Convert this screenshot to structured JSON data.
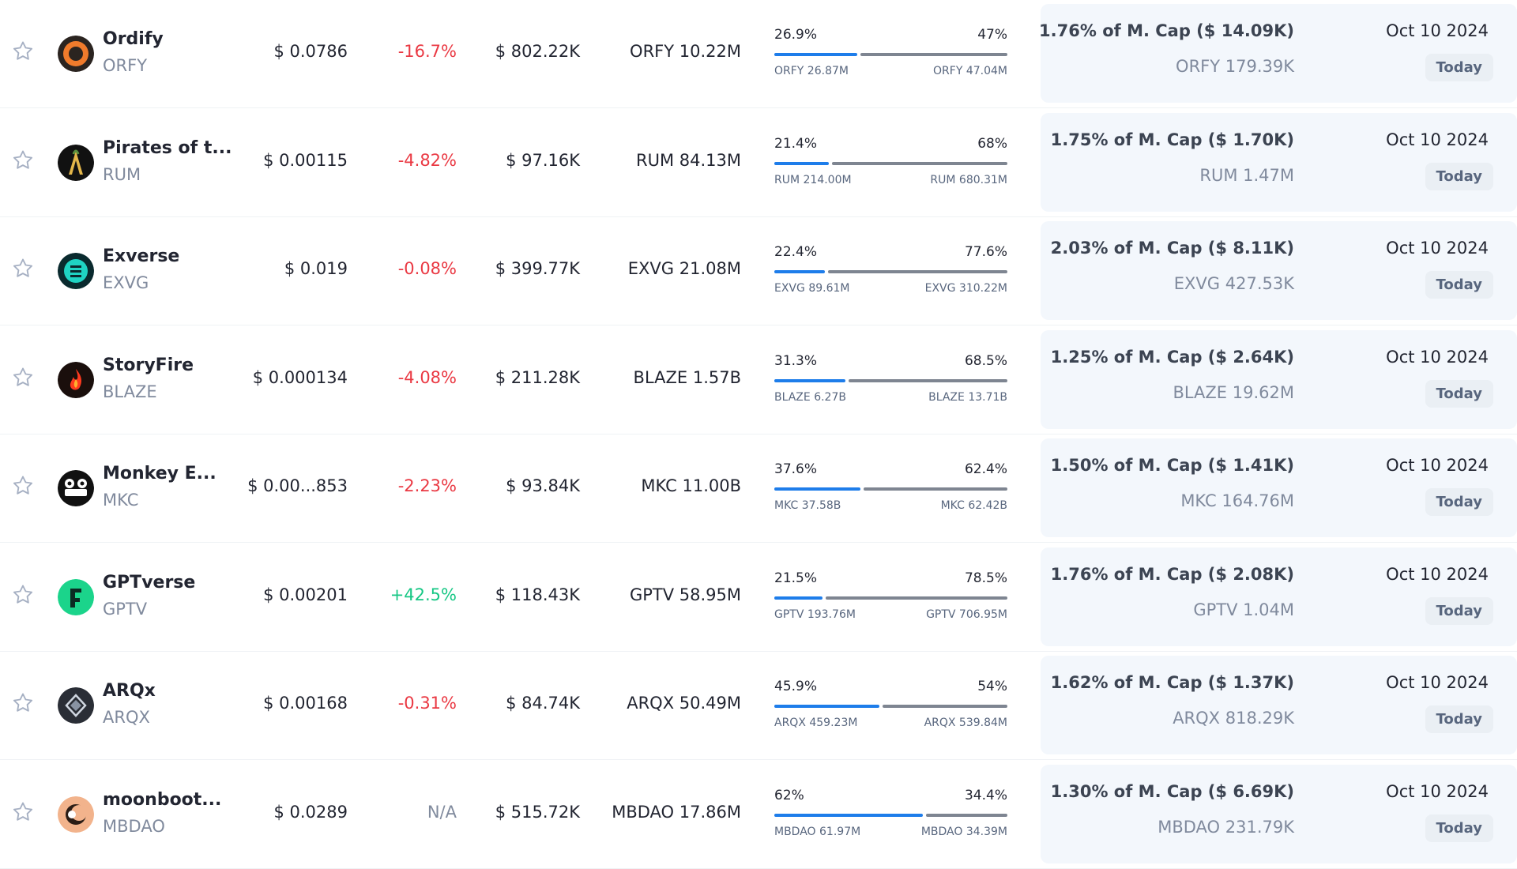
{
  "colors": {
    "negative": "#ea3943",
    "positive": "#16c784",
    "unlocked_bar": "#1e7dea",
    "locked_bar": "#7e8591"
  },
  "rows": [
    {
      "name": "Ordify",
      "symbol": "ORFY",
      "logo_icon": "ordify-logo-icon",
      "price": "$ 0.0786",
      "change": "-16.7%",
      "change_dir": "neg",
      "market_cap": "$ 802.22K",
      "circ_supply": "ORFY 10.22M",
      "unlocked_pct": "26.9%",
      "locked_pct": "47%",
      "unlocked_fraction": 0.364,
      "unlocked_amt": "ORFY 26.87M",
      "locked_amt": "ORFY 47.04M",
      "next_unlock_pct": "1.76% of M. Cap ($ 14.09K)",
      "next_unlock_amt": "ORFY 179.39K",
      "date": "Oct 10 2024",
      "badge": "Today"
    },
    {
      "name": "Pirates of t...",
      "symbol": "RUM",
      "logo_icon": "pirates-logo-icon",
      "price": "$ 0.00115",
      "change": "-4.82%",
      "change_dir": "neg",
      "market_cap": "$ 97.16K",
      "circ_supply": "RUM 84.13M",
      "unlocked_pct": "21.4%",
      "locked_pct": "68%",
      "unlocked_fraction": 0.239,
      "unlocked_amt": "RUM 214.00M",
      "locked_amt": "RUM 680.31M",
      "next_unlock_pct": "1.75% of M. Cap ($ 1.70K)",
      "next_unlock_amt": "RUM 1.47M",
      "date": "Oct 10 2024",
      "badge": "Today"
    },
    {
      "name": "Exverse",
      "symbol": "EXVG",
      "logo_icon": "exverse-logo-icon",
      "price": "$ 0.019",
      "change": "-0.08%",
      "change_dir": "neg",
      "market_cap": "$ 399.77K",
      "circ_supply": "EXVG 21.08M",
      "unlocked_pct": "22.4%",
      "locked_pct": "77.6%",
      "unlocked_fraction": 0.224,
      "unlocked_amt": "EXVG 89.61M",
      "locked_amt": "EXVG 310.22M",
      "next_unlock_pct": "2.03% of M. Cap ($ 8.11K)",
      "next_unlock_amt": "EXVG 427.53K",
      "date": "Oct 10 2024",
      "badge": "Today"
    },
    {
      "name": "StoryFire",
      "symbol": "BLAZE",
      "logo_icon": "storyfire-logo-icon",
      "price": "$ 0.000134",
      "change": "-4.08%",
      "change_dir": "neg",
      "market_cap": "$ 211.28K",
      "circ_supply": "BLAZE 1.57B",
      "unlocked_pct": "31.3%",
      "locked_pct": "68.5%",
      "unlocked_fraction": 0.313,
      "unlocked_amt": "BLAZE 6.27B",
      "locked_amt": "BLAZE 13.71B",
      "next_unlock_pct": "1.25% of M. Cap ($ 2.64K)",
      "next_unlock_amt": "BLAZE 19.62M",
      "date": "Oct 10 2024",
      "badge": "Today"
    },
    {
      "name": "Monkey E...",
      "symbol": "MKC",
      "logo_icon": "monkey-logo-icon",
      "price": "$ 0.00...853",
      "change": "-2.23%",
      "change_dir": "neg",
      "market_cap": "$ 93.84K",
      "circ_supply": "MKC 11.00B",
      "unlocked_pct": "37.6%",
      "locked_pct": "62.4%",
      "unlocked_fraction": 0.376,
      "unlocked_amt": "MKC 37.58B",
      "locked_amt": "MKC 62.42B",
      "next_unlock_pct": "1.50% of M. Cap ($ 1.41K)",
      "next_unlock_amt": "MKC 164.76M",
      "date": "Oct 10 2024",
      "badge": "Today"
    },
    {
      "name": "GPTverse",
      "symbol": "GPTV",
      "logo_icon": "gptverse-logo-icon",
      "price": "$ 0.00201",
      "change": "+42.5%",
      "change_dir": "pos",
      "market_cap": "$ 118.43K",
      "circ_supply": "GPTV 58.95M",
      "unlocked_pct": "21.5%",
      "locked_pct": "78.5%",
      "unlocked_fraction": 0.215,
      "unlocked_amt": "GPTV 193.76M",
      "locked_amt": "GPTV 706.95M",
      "next_unlock_pct": "1.76% of M. Cap ($ 2.08K)",
      "next_unlock_amt": "GPTV 1.04M",
      "date": "Oct 10 2024",
      "badge": "Today"
    },
    {
      "name": "ARQx",
      "symbol": "ARQX",
      "logo_icon": "arqx-logo-icon",
      "price": "$ 0.00168",
      "change": "-0.31%",
      "change_dir": "neg",
      "market_cap": "$ 84.74K",
      "circ_supply": "ARQX 50.49M",
      "unlocked_pct": "45.9%",
      "locked_pct": "54%",
      "unlocked_fraction": 0.459,
      "unlocked_amt": "ARQX 459.23M",
      "locked_amt": "ARQX 539.84M",
      "next_unlock_pct": "1.62% of M. Cap ($ 1.37K)",
      "next_unlock_amt": "ARQX 818.29K",
      "date": "Oct 10 2024",
      "badge": "Today"
    },
    {
      "name": "moonboot...",
      "symbol": "MBDAO",
      "logo_icon": "moonboots-logo-icon",
      "price": "$ 0.0289",
      "change": "N/A",
      "change_dir": "na",
      "market_cap": "$ 515.72K",
      "circ_supply": "MBDAO 17.86M",
      "unlocked_pct": "62%",
      "locked_pct": "34.4%",
      "unlocked_fraction": 0.643,
      "unlocked_amt": "MBDAO 61.97M",
      "locked_amt": "MBDAO 34.39M",
      "next_unlock_pct": "1.30% of M. Cap ($ 6.69K)",
      "next_unlock_amt": "MBDAO 231.79K",
      "date": "Oct 10 2024",
      "badge": "Today"
    }
  ]
}
